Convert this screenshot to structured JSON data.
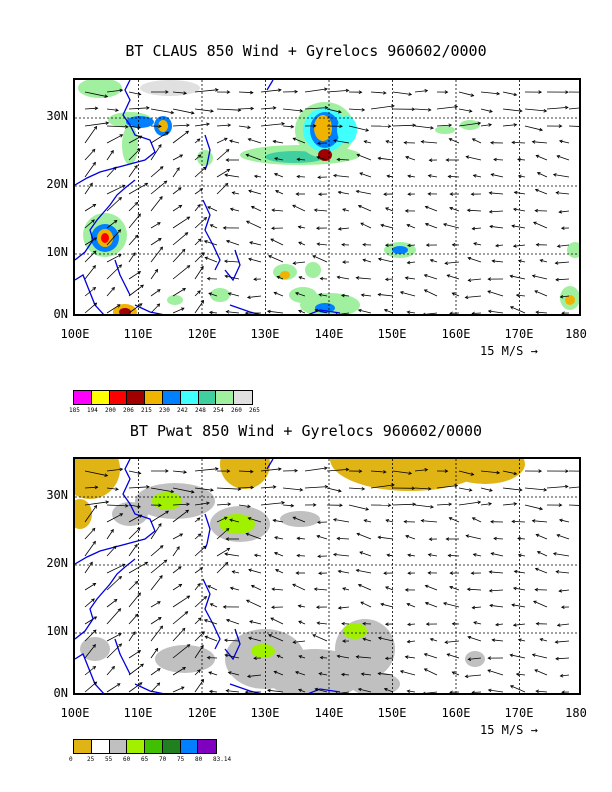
{
  "panels": [
    {
      "title": "BT CLAUS 850 Wind + Gyrelocs 960602/0000",
      "x_labels": [
        "100E",
        "110E",
        "120E",
        "130E",
        "140E",
        "150E",
        "160E",
        "170E",
        "180"
      ],
      "y_labels": [
        "30N",
        "20N",
        "10N",
        "0N"
      ],
      "ref_vector": "15 M/S →",
      "colorbar": {
        "labels": [
          "185",
          "194",
          "200",
          "206",
          "215",
          "230",
          "242",
          "248",
          "254",
          "260",
          "265"
        ],
        "colors": [
          "#ff00ff",
          "#ffff00",
          "#ff0000",
          "#a00000",
          "#f0b400",
          "#0080ff",
          "#40ffff",
          "#40d0a0",
          "#a0f0a0",
          "#e0e0e0"
        ]
      }
    },
    {
      "title": "BT Pwat 850 Wind + Gyrelocs 960602/0000",
      "x_labels": [
        "100E",
        "110E",
        "120E",
        "130E",
        "140E",
        "150E",
        "160E",
        "170E",
        "180"
      ],
      "y_labels": [
        "30N",
        "20N",
        "10N",
        "0N"
      ],
      "ref_vector": "15 M/S →",
      "colorbar": {
        "labels": [
          "0",
          "25",
          "55",
          "60",
          "65",
          "70",
          "75",
          "80",
          "83.14"
        ],
        "colors": [
          "#e0b414",
          "#ffffff",
          "#c0c0c0",
          "#a0f000",
          "#40c000",
          "#208020",
          "#0080ff",
          "#8000c0"
        ]
      }
    }
  ]
}
